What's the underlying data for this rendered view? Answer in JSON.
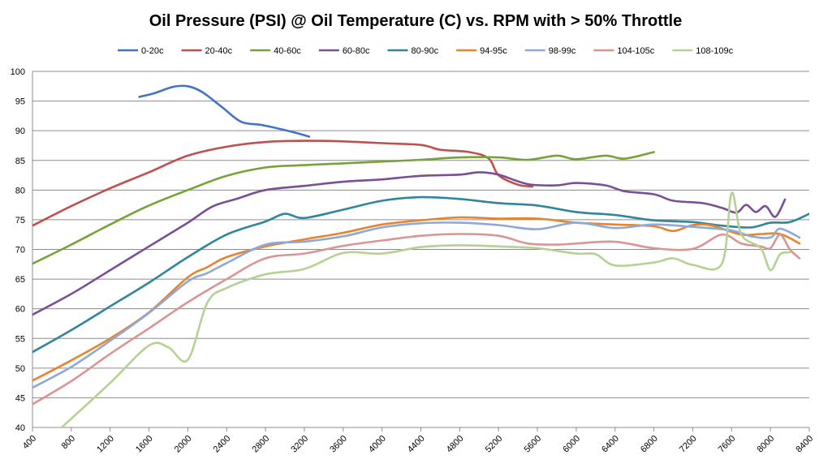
{
  "chart_data": {
    "type": "line",
    "title": "Oil Pressure (PSI) @ Oil Temperature (C) vs. RPM with > 50% Throttle",
    "xlabel": "",
    "ylabel": "",
    "xlim": [
      400,
      8400
    ],
    "ylim": [
      40,
      100
    ],
    "xticks": [
      400,
      800,
      1200,
      1600,
      2000,
      2400,
      2800,
      3200,
      3600,
      4000,
      4400,
      4800,
      5200,
      5600,
      6000,
      6400,
      6800,
      7200,
      7600,
      8000,
      8400
    ],
    "yticks": [
      40,
      45,
      50,
      55,
      60,
      65,
      70,
      75,
      80,
      85,
      90,
      95,
      100
    ],
    "grid": "horizontal",
    "legend_position": "top",
    "series": [
      {
        "name": "0-20c",
        "color": "#4472c4",
        "points": [
          [
            1500,
            95.7
          ],
          [
            1650,
            96.3
          ],
          [
            1850,
            97.4
          ],
          [
            2000,
            97.5
          ],
          [
            2150,
            96.5
          ],
          [
            2350,
            94
          ],
          [
            2550,
            91.5
          ],
          [
            2750,
            91
          ],
          [
            2950,
            90.3
          ],
          [
            3100,
            89.7
          ],
          [
            3250,
            89
          ]
        ]
      },
      {
        "name": "20-40c",
        "color": "#c0504d",
        "points": [
          [
            400,
            74
          ],
          [
            800,
            77.3
          ],
          [
            1200,
            80.3
          ],
          [
            1600,
            83
          ],
          [
            2000,
            85.8
          ],
          [
            2400,
            87.3
          ],
          [
            2800,
            88.1
          ],
          [
            3200,
            88.3
          ],
          [
            3600,
            88.2
          ],
          [
            4000,
            87.9
          ],
          [
            4400,
            87.6
          ],
          [
            4600,
            86.8
          ],
          [
            4900,
            86.4
          ],
          [
            5100,
            85.3
          ],
          [
            5200,
            82.5
          ],
          [
            5400,
            80.9
          ],
          [
            5550,
            80.6
          ]
        ]
      },
      {
        "name": "40-60c",
        "color": "#77a23a",
        "points": [
          [
            400,
            67.6
          ],
          [
            800,
            70.8
          ],
          [
            1200,
            74.2
          ],
          [
            1600,
            77.4
          ],
          [
            2000,
            80
          ],
          [
            2400,
            82.4
          ],
          [
            2800,
            83.8
          ],
          [
            3200,
            84.2
          ],
          [
            3600,
            84.5
          ],
          [
            4000,
            84.8
          ],
          [
            4400,
            85.1
          ],
          [
            4800,
            85.5
          ],
          [
            5200,
            85.5
          ],
          [
            5500,
            85.1
          ],
          [
            5800,
            85.8
          ],
          [
            6000,
            85.2
          ],
          [
            6300,
            85.8
          ],
          [
            6500,
            85.3
          ],
          [
            6800,
            86.4
          ]
        ]
      },
      {
        "name": "60-80c",
        "color": "#7b4f94",
        "points": [
          [
            400,
            59
          ],
          [
            800,
            62.5
          ],
          [
            1200,
            66.5
          ],
          [
            1600,
            70.5
          ],
          [
            2000,
            74.5
          ],
          [
            2250,
            77.2
          ],
          [
            2500,
            78.5
          ],
          [
            2800,
            80
          ],
          [
            3200,
            80.7
          ],
          [
            3600,
            81.4
          ],
          [
            4000,
            81.8
          ],
          [
            4400,
            82.4
          ],
          [
            4800,
            82.6
          ],
          [
            5000,
            83
          ],
          [
            5200,
            82.6
          ],
          [
            5500,
            81
          ],
          [
            5800,
            80.8
          ],
          [
            6000,
            81.2
          ],
          [
            6300,
            80.8
          ],
          [
            6500,
            79.8
          ],
          [
            6800,
            79.3
          ],
          [
            7000,
            78.2
          ],
          [
            7300,
            77.8
          ],
          [
            7500,
            77
          ],
          [
            7650,
            76.2
          ],
          [
            7750,
            77.5
          ],
          [
            7850,
            76.3
          ],
          [
            7950,
            77.3
          ],
          [
            8050,
            75.5
          ],
          [
            8150,
            78.4
          ]
        ]
      },
      {
        "name": "80-90c",
        "color": "#31869b",
        "points": [
          [
            400,
            52.7
          ],
          [
            800,
            56.4
          ],
          [
            1200,
            60.4
          ],
          [
            1600,
            64.4
          ],
          [
            2000,
            68.7
          ],
          [
            2400,
            72.5
          ],
          [
            2800,
            74.7
          ],
          [
            3000,
            76
          ],
          [
            3200,
            75.3
          ],
          [
            3600,
            76.7
          ],
          [
            4000,
            78.2
          ],
          [
            4400,
            78.8
          ],
          [
            4800,
            78.5
          ],
          [
            5200,
            77.8
          ],
          [
            5600,
            77.4
          ],
          [
            6000,
            76.3
          ],
          [
            6400,
            75.8
          ],
          [
            6800,
            74.9
          ],
          [
            7200,
            74.6
          ],
          [
            7500,
            74
          ],
          [
            7800,
            73.7
          ],
          [
            8000,
            74.5
          ],
          [
            8200,
            74.6
          ],
          [
            8400,
            76
          ]
        ]
      },
      {
        "name": "94-95c",
        "color": "#e8842c",
        "points": [
          [
            400,
            47.9
          ],
          [
            800,
            51.3
          ],
          [
            1200,
            55
          ],
          [
            1600,
            59.4
          ],
          [
            2000,
            65.3
          ],
          [
            2200,
            67
          ],
          [
            2400,
            68.7
          ],
          [
            2800,
            70.5
          ],
          [
            3200,
            71.7
          ],
          [
            3600,
            72.8
          ],
          [
            4000,
            74.2
          ],
          [
            4400,
            74.9
          ],
          [
            4800,
            75.4
          ],
          [
            5200,
            75.2
          ],
          [
            5600,
            75.2
          ],
          [
            6000,
            74.5
          ],
          [
            6400,
            74.2
          ],
          [
            6800,
            73.9
          ],
          [
            7000,
            73.1
          ],
          [
            7200,
            74.1
          ],
          [
            7400,
            74
          ],
          [
            7700,
            72.5
          ],
          [
            7900,
            72.6
          ],
          [
            8100,
            72.6
          ],
          [
            8300,
            71
          ]
        ]
      },
      {
        "name": "98-99c",
        "color": "#8ea9d8",
        "points": [
          [
            400,
            46.7
          ],
          [
            800,
            50.2
          ],
          [
            1200,
            54.6
          ],
          [
            1600,
            59.3
          ],
          [
            2000,
            64.6
          ],
          [
            2200,
            66
          ],
          [
            2400,
            67.7
          ],
          [
            2800,
            70.8
          ],
          [
            3200,
            71.3
          ],
          [
            3600,
            72.2
          ],
          [
            4000,
            73.7
          ],
          [
            4400,
            74.4
          ],
          [
            4800,
            74.5
          ],
          [
            5200,
            74.1
          ],
          [
            5600,
            73.4
          ],
          [
            6000,
            74.5
          ],
          [
            6400,
            73.6
          ],
          [
            6800,
            74.2
          ],
          [
            7200,
            73.8
          ],
          [
            7600,
            73.2
          ],
          [
            7800,
            72.2
          ],
          [
            8000,
            72
          ],
          [
            8100,
            73.5
          ],
          [
            8300,
            72
          ]
        ]
      },
      {
        "name": "104-105c",
        "color": "#d99594",
        "points": [
          [
            400,
            43.9
          ],
          [
            800,
            47.8
          ],
          [
            1200,
            52.4
          ],
          [
            1600,
            56.7
          ],
          [
            2000,
            61.1
          ],
          [
            2400,
            65
          ],
          [
            2800,
            68.5
          ],
          [
            3200,
            69.3
          ],
          [
            3600,
            70.6
          ],
          [
            4000,
            71.5
          ],
          [
            4400,
            72.3
          ],
          [
            4800,
            72.6
          ],
          [
            5200,
            72.3
          ],
          [
            5500,
            71
          ],
          [
            5800,
            70.8
          ],
          [
            6000,
            71
          ],
          [
            6400,
            71.3
          ],
          [
            6800,
            70.2
          ],
          [
            7200,
            70.1
          ],
          [
            7500,
            72.5
          ],
          [
            7700,
            71
          ],
          [
            7900,
            70.5
          ],
          [
            8000,
            70.2
          ],
          [
            8100,
            72.5
          ],
          [
            8200,
            70
          ],
          [
            8300,
            68.5
          ]
        ]
      },
      {
        "name": "108-109c",
        "color": "#b5d193",
        "points": [
          [
            700,
            40
          ],
          [
            1200,
            47.5
          ],
          [
            1600,
            53.8
          ],
          [
            1800,
            53.5
          ],
          [
            2000,
            51.4
          ],
          [
            2200,
            61
          ],
          [
            2400,
            63.5
          ],
          [
            2800,
            65.8
          ],
          [
            3200,
            66.7
          ],
          [
            3600,
            69.4
          ],
          [
            4000,
            69.3
          ],
          [
            4400,
            70.4
          ],
          [
            4800,
            70.7
          ],
          [
            5200,
            70.5
          ],
          [
            5600,
            70.2
          ],
          [
            6000,
            69.3
          ],
          [
            6200,
            69.2
          ],
          [
            6400,
            67.3
          ],
          [
            6800,
            67.8
          ],
          [
            7000,
            68.5
          ],
          [
            7200,
            67.4
          ],
          [
            7500,
            67.6
          ],
          [
            7600,
            79.5
          ],
          [
            7700,
            72.5
          ],
          [
            7900,
            70.2
          ],
          [
            8000,
            66.5
          ],
          [
            8100,
            69.2
          ],
          [
            8200,
            69.5
          ]
        ]
      }
    ]
  }
}
